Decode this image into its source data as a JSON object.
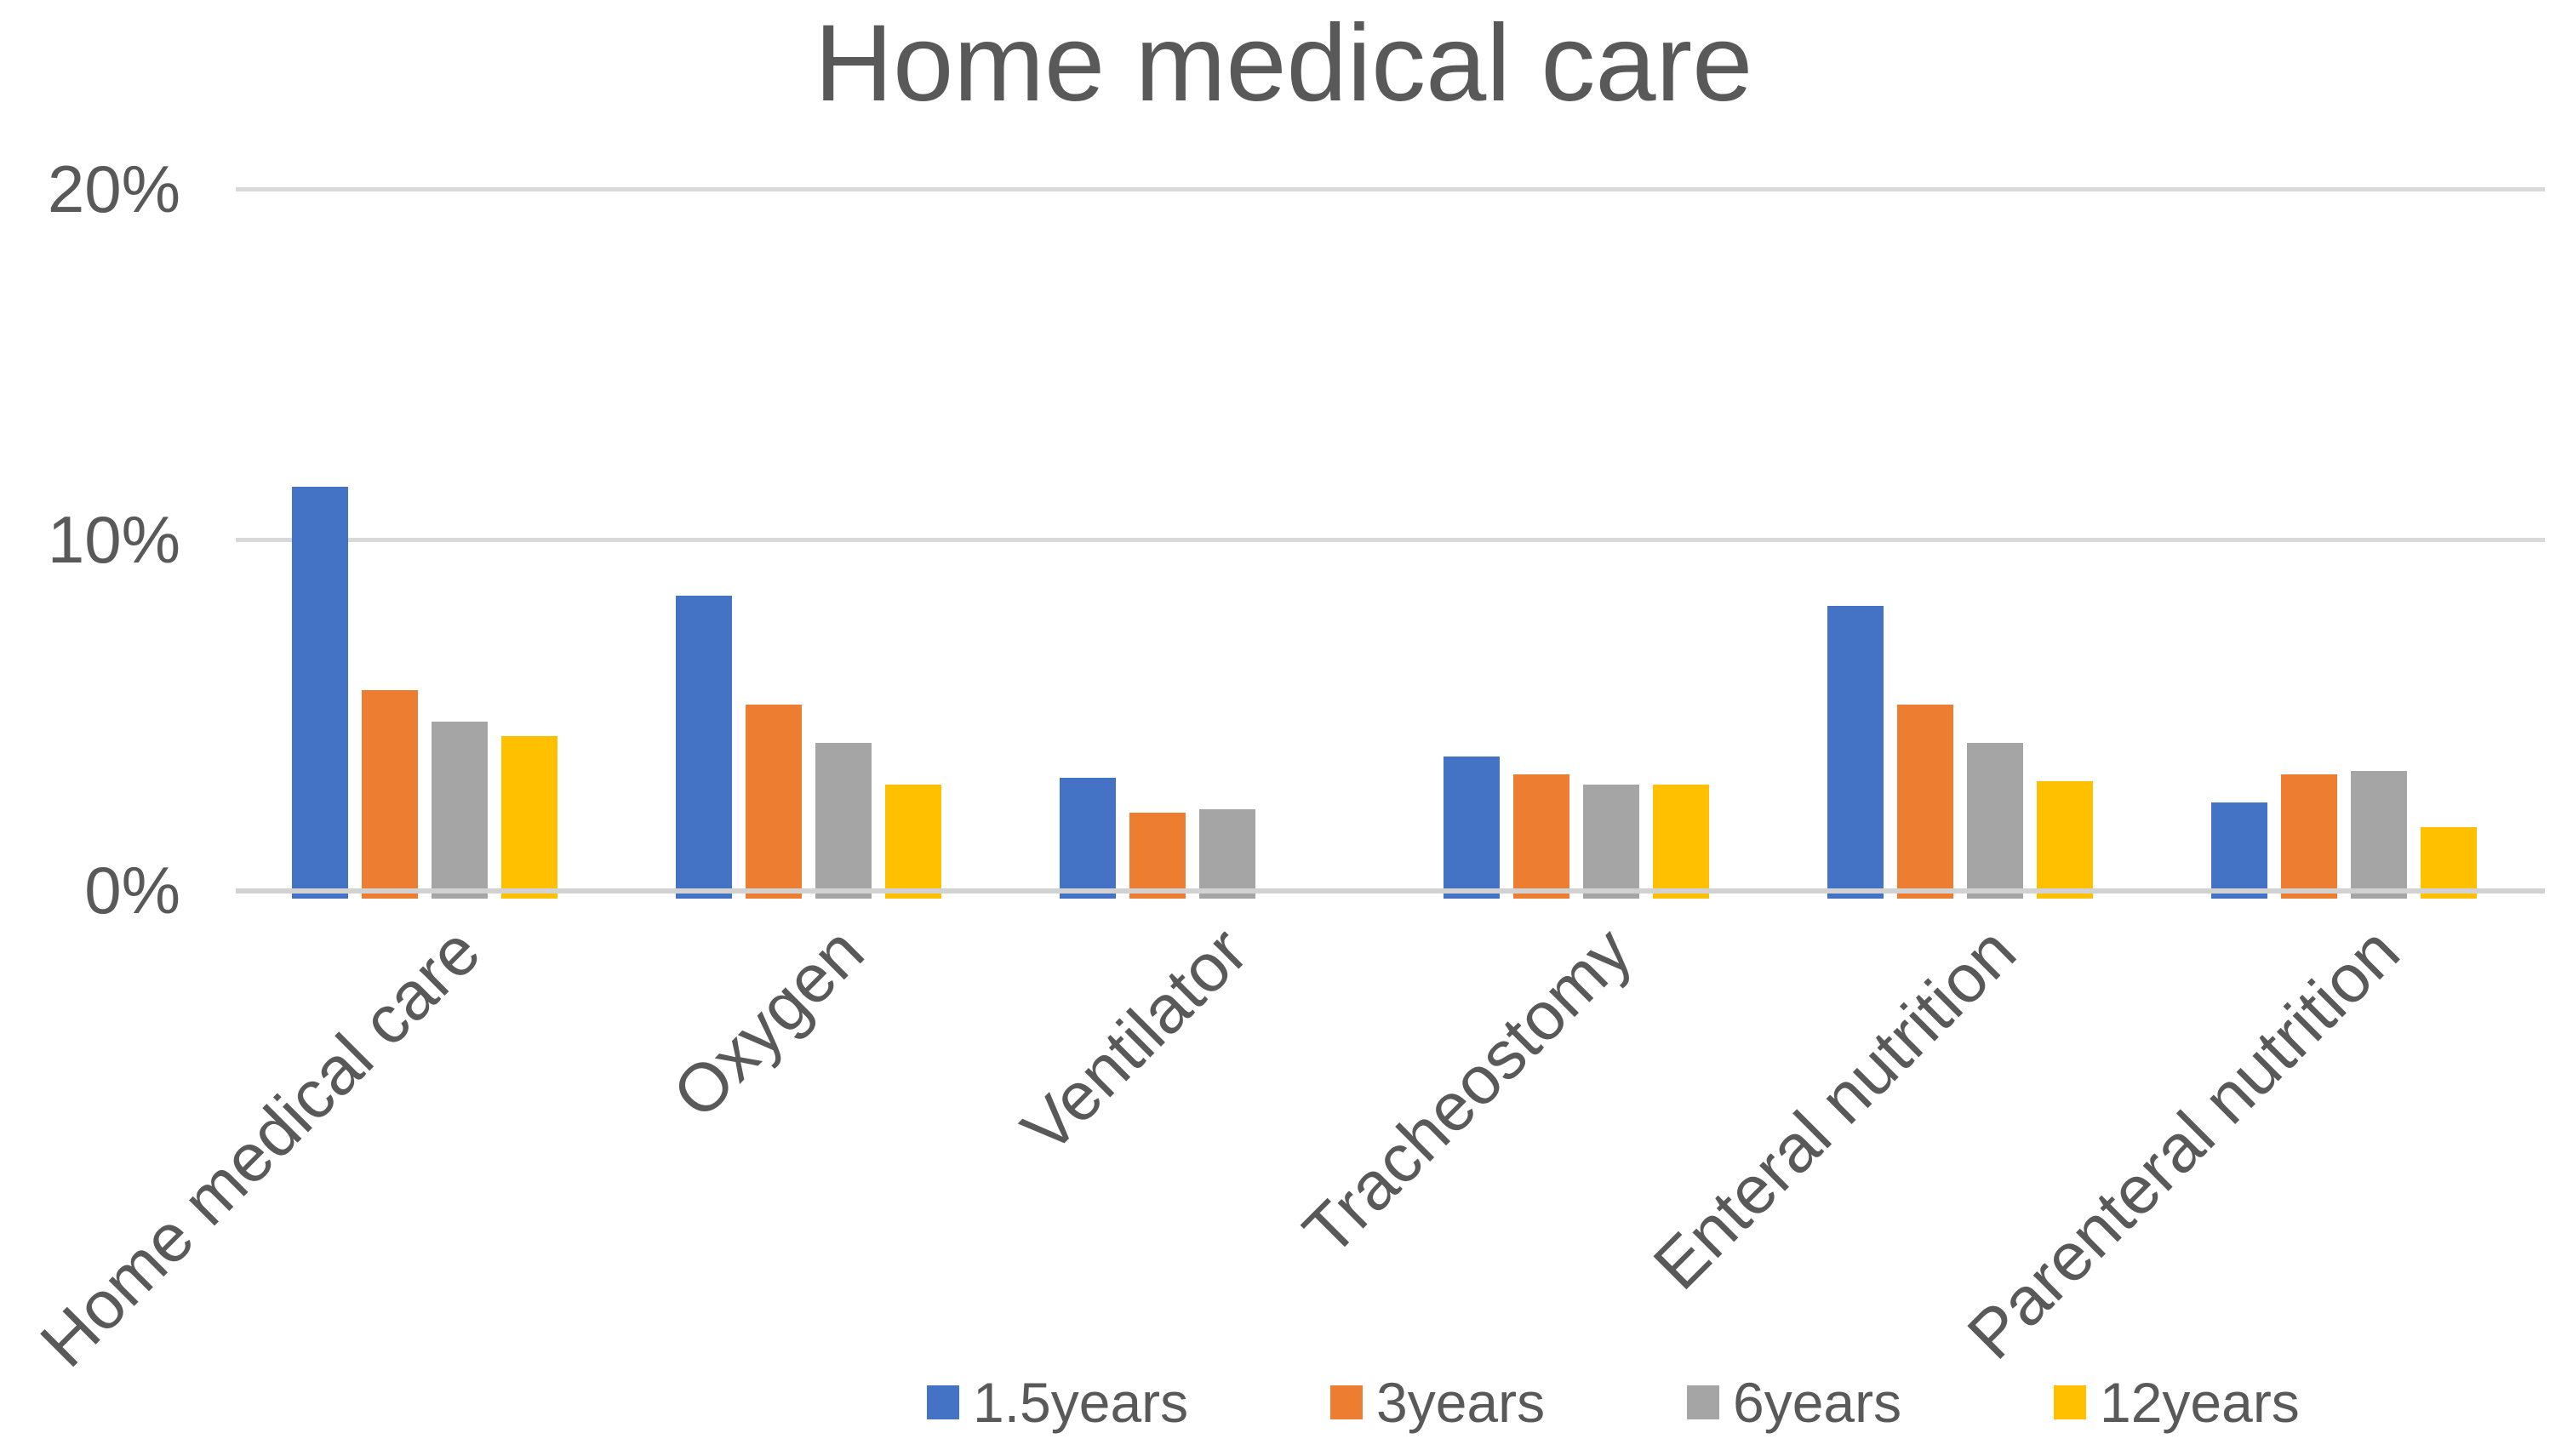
{
  "title": "Home medical care",
  "y_axis": {
    "tick_labels_top_down": [
      "20%",
      "10%",
      "0%"
    ]
  },
  "x_axis": {
    "labels": [
      "Home medical care",
      "Oxygen",
      "Ventilator",
      "Tracheostomy",
      "Enteral nutrition",
      "Parenteral nutrition"
    ]
  },
  "legend": {
    "position": "bottom",
    "labels": [
      "1.5years",
      "3years",
      "6years",
      "12years"
    ]
  },
  "colors": {
    "series_blue": "#4472C4",
    "series_orange": "#ED7D31",
    "series_gray": "#A5A5A5",
    "series_yellow": "#FFC000",
    "text_gray": "#595959",
    "gridline_gray": "#D9D9D9"
  },
  "chart_data": {
    "type": "bar",
    "title": "Home medical care",
    "categories": [
      "Home medical care",
      "Oxygen",
      "Ventilator",
      "Tracheostomy",
      "Enteral nutrition",
      "Parenteral nutrition"
    ],
    "series": [
      {
        "name": "1.5years",
        "color": "#4472C4",
        "values": [
          11.5,
          8.4,
          3.2,
          3.8,
          8.1,
          2.5
        ]
      },
      {
        "name": "3years",
        "color": "#ED7D31",
        "values": [
          5.7,
          5.3,
          2.2,
          3.3,
          5.3,
          3.3
        ]
      },
      {
        "name": "6years",
        "color": "#A5A5A5",
        "values": [
          4.8,
          4.2,
          2.3,
          3.0,
          4.2,
          3.4
        ]
      },
      {
        "name": "12years",
        "color": "#FFC000",
        "values": [
          4.4,
          3.0,
          0,
          3.0,
          3.1,
          1.8
        ]
      }
    ],
    "value_unit": "%",
    "ylim": [
      0,
      20
    ],
    "yticks": [
      {
        "label": "20%",
        "value": 20
      },
      {
        "label": "10%",
        "value": 10
      },
      {
        "label": "0%",
        "value": 0
      }
    ],
    "grid": "horizontal",
    "x_tick_rotation_deg": 45,
    "legend_position": "bottom"
  }
}
